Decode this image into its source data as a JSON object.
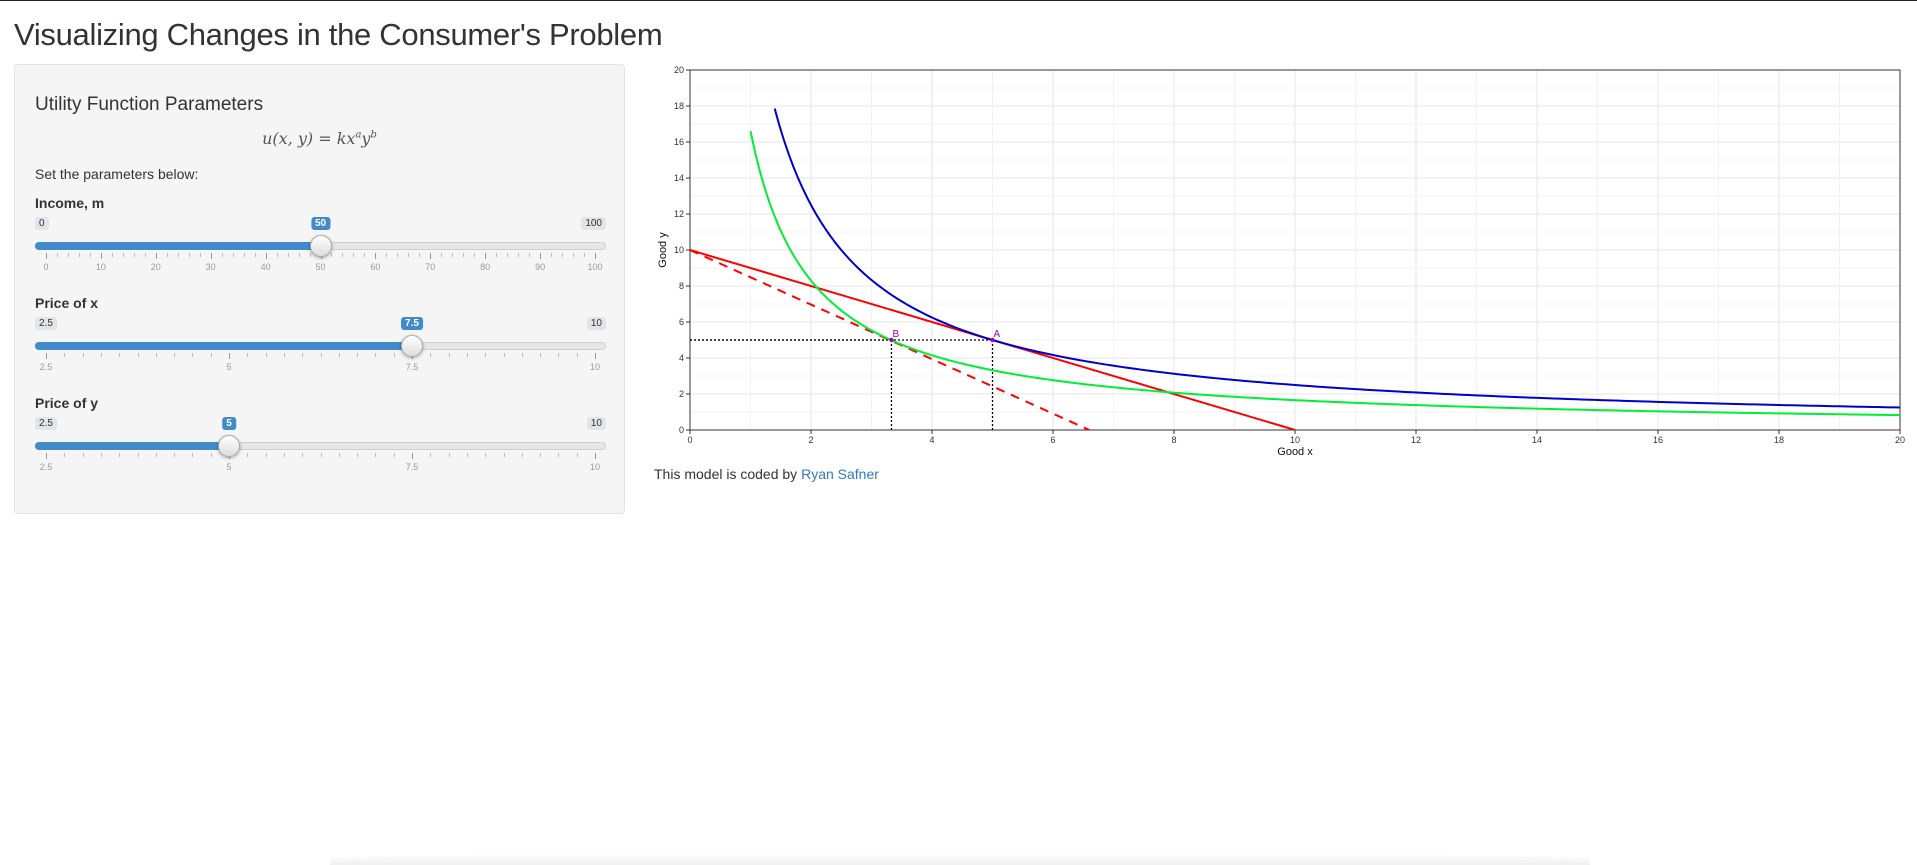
{
  "page": {
    "title": "Visualizing Changes in the Consumer's Problem"
  },
  "sidebar": {
    "heading": "Utility Function Parameters",
    "formula": {
      "lhs": "u(x, y) = kx",
      "exp_a": "a",
      "mid": "y",
      "exp_b": "b"
    },
    "help_text": "Set the parameters below:",
    "sliders": [
      {
        "id": "income",
        "label": "Income, m",
        "min": 0,
        "max": 100,
        "value": 50,
        "min_label": "0",
        "max_label": "100",
        "value_label": "50",
        "major_ticks": [
          "0",
          "10",
          "20",
          "30",
          "40",
          "50",
          "60",
          "70",
          "80",
          "90",
          "100"
        ],
        "minor_per_major": 4
      },
      {
        "id": "price_x",
        "label": "Price of x",
        "min": 2.5,
        "max": 10,
        "value": 7.5,
        "min_label": "2.5",
        "max_label": "10",
        "value_label": "7.5",
        "major_ticks": [
          "2.5",
          "5",
          "7.5",
          "10"
        ],
        "minor_per_major": 9
      },
      {
        "id": "price_y",
        "label": "Price of y",
        "min": 2.5,
        "max": 10,
        "value": 5,
        "min_label": "2.5",
        "max_label": "10",
        "value_label": "5",
        "major_ticks": [
          "2.5",
          "5",
          "7.5",
          "10"
        ],
        "minor_per_major": 9
      }
    ]
  },
  "chart_data": {
    "type": "line",
    "xlabel": "Good x",
    "ylabel": "Good y",
    "xlim": [
      0,
      20
    ],
    "ylim": [
      0,
      20
    ],
    "xticks": [
      0,
      2,
      4,
      6,
      8,
      10,
      12,
      14,
      16,
      18,
      20
    ],
    "yticks": [
      0,
      2,
      4,
      6,
      8,
      10,
      12,
      14,
      16,
      18,
      20
    ],
    "grid": true,
    "series": [
      {
        "kind": "budget",
        "color": "#ff0000",
        "dash": false,
        "points": [
          [
            0,
            10
          ],
          [
            10,
            0
          ]
        ]
      },
      {
        "kind": "budget",
        "color": "#ff0000",
        "dash": true,
        "points": [
          [
            0,
            10
          ],
          [
            6.6,
            0
          ]
        ]
      },
      {
        "kind": "indifference",
        "color": "#0000cc",
        "utility": 25,
        "x_from": 1.4,
        "x_to": 20
      },
      {
        "kind": "indifference",
        "color": "#00ee33",
        "utility": 16.6,
        "x_from": 1.0,
        "x_to": 20
      }
    ],
    "points": [
      {
        "label": "A",
        "x": 5,
        "y": 5,
        "color": "#9900cc"
      },
      {
        "label": "B",
        "x": 3.33,
        "y": 5,
        "color": "#9900cc"
      }
    ]
  },
  "footer": {
    "text": "This model is coded by ",
    "link_text": "Ryan Safner"
  }
}
